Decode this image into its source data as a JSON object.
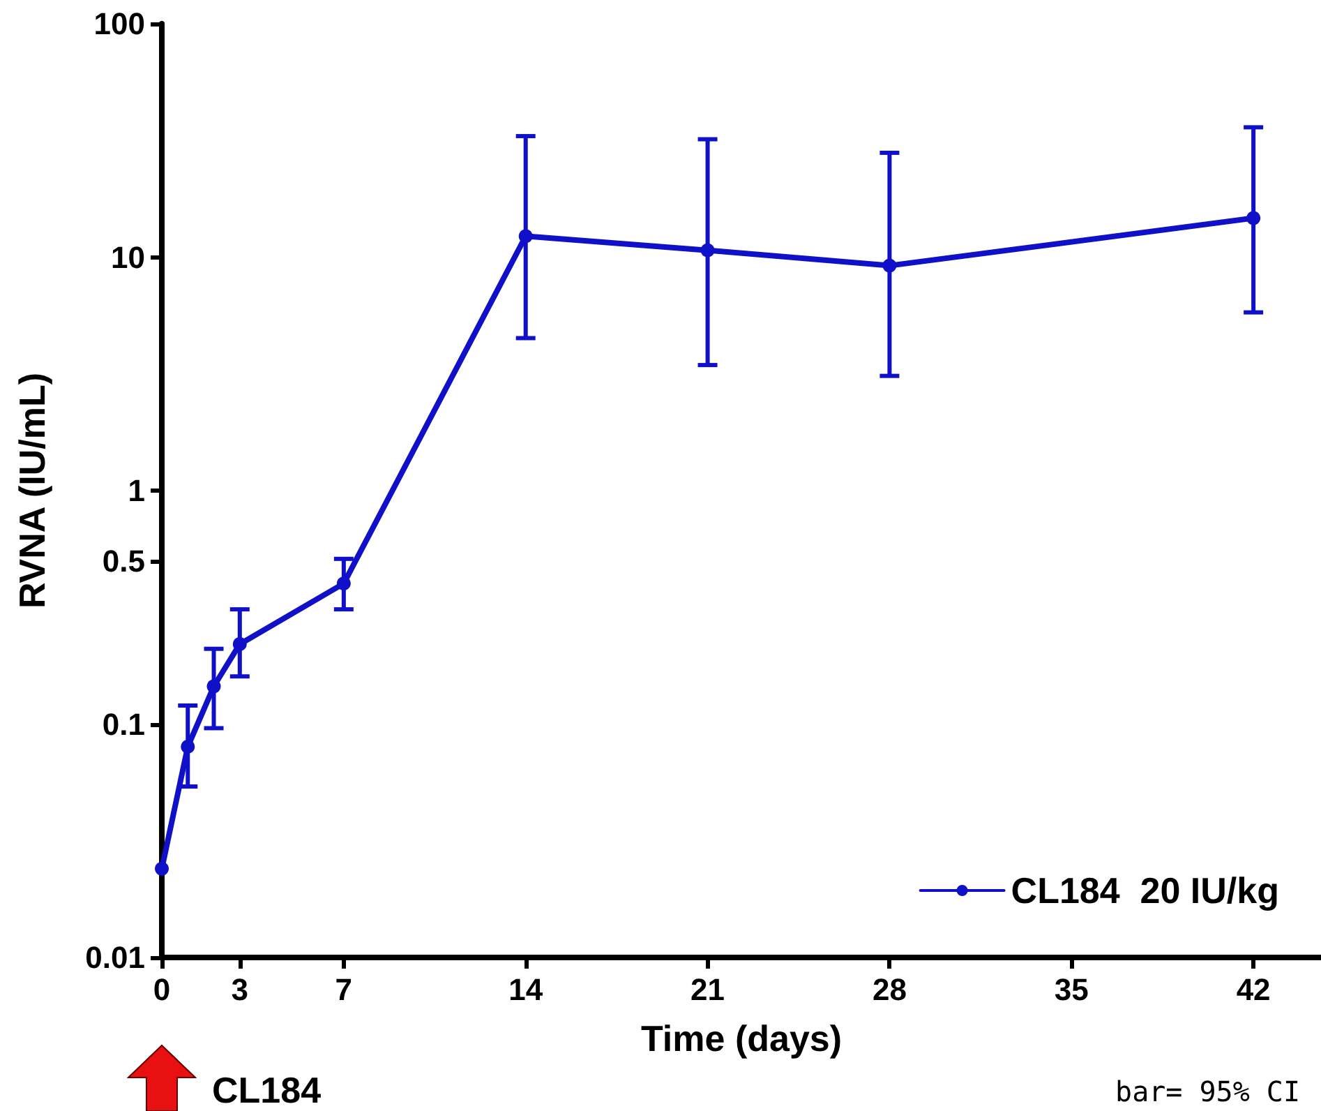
{
  "chart_data": {
    "type": "line",
    "xlabel": "Time (days)",
    "ylabel": "RVNA (IU/mL)",
    "x": [
      0,
      1,
      2,
      3,
      7,
      14,
      21,
      28,
      42
    ],
    "series": [
      {
        "name": "CL184  20 IU/kg",
        "color": "#1010c8",
        "values": [
          0.024,
          0.08,
          0.145,
          0.22,
          0.4,
          12.3,
          10.7,
          9.2,
          14.7
        ],
        "errors": [
          null,
          [
            0.054,
            0.12
          ],
          [
            0.096,
            0.21
          ],
          [
            0.16,
            0.31
          ],
          [
            0.31,
            0.51
          ],
          [
            4.5,
            33
          ],
          [
            3.45,
            32
          ],
          [
            3.1,
            28
          ],
          [
            5.8,
            36
          ]
        ]
      }
    ],
    "log": "y",
    "xlim": [
      0,
      44.6
    ],
    "xticks": [
      0,
      3,
      7,
      14,
      21,
      28,
      35,
      42
    ],
    "ylim": [
      0.01,
      100
    ],
    "yticks": [
      0.01,
      0.1,
      0.5,
      1,
      10,
      100
    ],
    "grid": false,
    "legend": "bottom right",
    "marker": "circle",
    "line_style": "solid",
    "annotations": [
      "CL184",
      "bar= 95% CI"
    ]
  }
}
